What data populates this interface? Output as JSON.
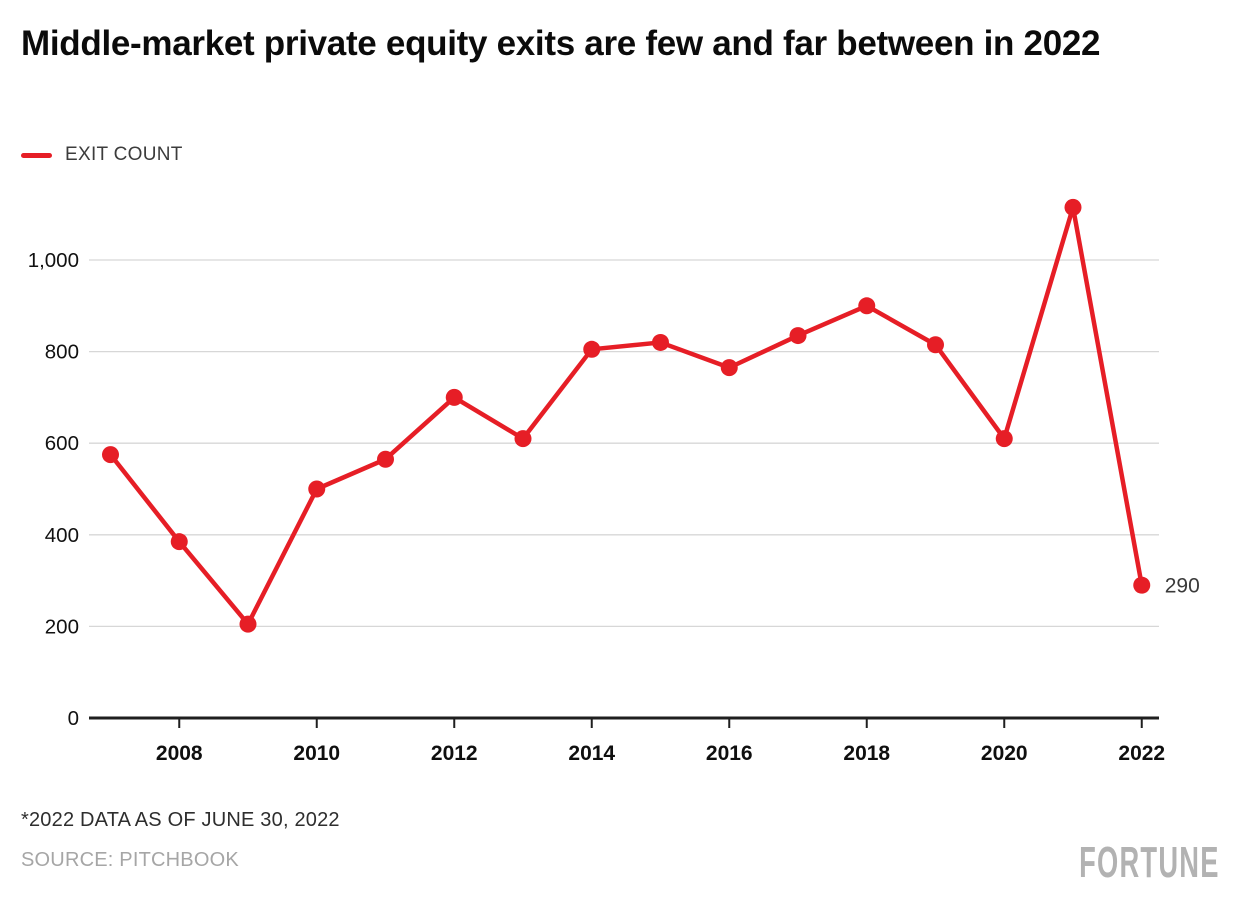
{
  "header": {
    "title": "Middle-market private equity exits are few and far between in 2022"
  },
  "legend": {
    "label": "EXIT COUNT",
    "color": "#e61e26"
  },
  "chart_data": {
    "type": "line",
    "title": "Middle-market private equity exits are few and far between in 2022",
    "x": [
      2007,
      2008,
      2009,
      2010,
      2011,
      2012,
      2013,
      2014,
      2015,
      2016,
      2017,
      2018,
      2019,
      2020,
      2021,
      2022
    ],
    "series": [
      {
        "name": "EXIT COUNT",
        "color": "#e61e26",
        "values": [
          575,
          385,
          205,
          500,
          565,
          700,
          610,
          805,
          820,
          765,
          835,
          900,
          815,
          610,
          1115,
          290
        ]
      }
    ],
    "xlabel": "",
    "ylabel": "",
    "ylim": [
      0,
      1200
    ],
    "y_ticks": [
      0,
      200,
      400,
      600,
      800,
      1000
    ],
    "y_tick_labels": [
      "0",
      "200",
      "400",
      "600",
      "800",
      "1,000"
    ],
    "x_ticks": [
      2008,
      2010,
      2012,
      2014,
      2016,
      2018,
      2020,
      2022
    ],
    "x_tick_labels": [
      "2008",
      "2010",
      "2012",
      "2014",
      "2016",
      "2018",
      "2020",
      "2022"
    ],
    "grid": true,
    "legend_position": "top-left",
    "annotations": [
      {
        "x": 2022,
        "y": 290,
        "text": "290"
      }
    ],
    "colors": {
      "line": "#e61e26",
      "gridline": "#d7d7d7",
      "axis": "#1f1f1f",
      "tick_label": "#111111",
      "annotation": "#3a3a3a"
    }
  },
  "footer": {
    "footnote": "*2022 DATA AS OF JUNE 30, 2022",
    "source": "SOURCE: PITCHBOOK",
    "brand": "FORTUNE"
  }
}
